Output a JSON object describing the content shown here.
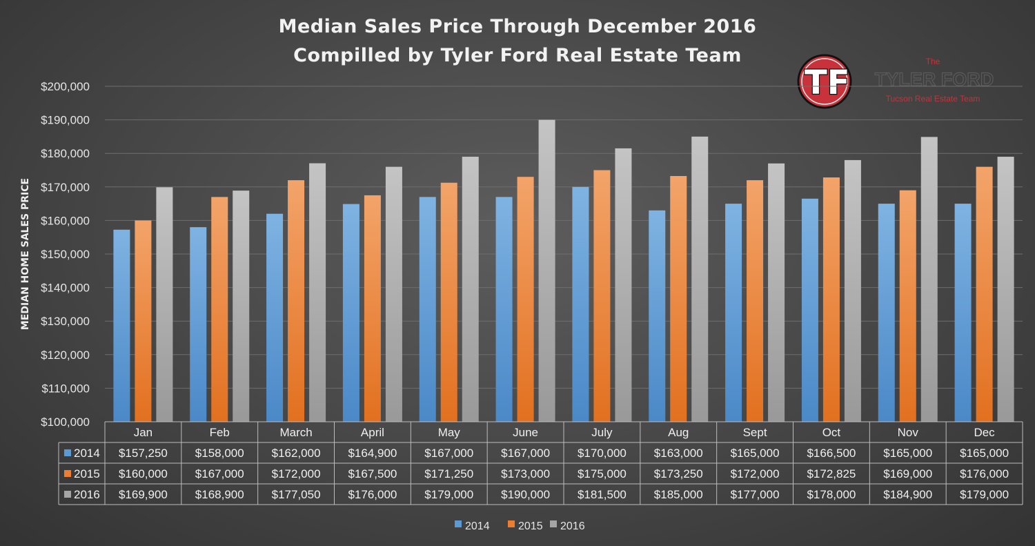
{
  "colors": {
    "s2014": "#5b9bd5",
    "s2015": "#ed7d31",
    "s2016": "#a5a5a5",
    "grid": "#6e6e6e",
    "logo_red": "#c8323a"
  },
  "logo": {
    "monogram": "TF",
    "the": "The",
    "name": "TYLER FORD",
    "subtitle": "Tucson Real Estate Team"
  },
  "chart_data": {
    "type": "bar",
    "title": "Median Sales Price Through December 2016",
    "subtitle": "Compilled by Tyler Ford Real Estate Team",
    "xlabel": "",
    "ylabel": "MEDIAN HOME SALES PRICE",
    "ylim": [
      100000,
      200000
    ],
    "yticks": [
      "$100,000",
      "$110,000",
      "$120,000",
      "$130,000",
      "$140,000",
      "$150,000",
      "$160,000",
      "$170,000",
      "$180,000",
      "$190,000",
      "$200,000"
    ],
    "grid": true,
    "legend": "bottom",
    "categories": [
      "Jan",
      "Feb",
      "March",
      "April",
      "May",
      "June",
      "July",
      "Aug",
      "Sept",
      "Oct",
      "Nov",
      "Dec"
    ],
    "series": [
      {
        "name": "2014",
        "values": [
          157250,
          158000,
          162000,
          164900,
          167000,
          167000,
          170000,
          163000,
          165000,
          166500,
          165000,
          165000
        ],
        "labels": [
          "$157,250",
          "$158,000",
          "$162,000",
          "$164,900",
          "$167,000",
          "$167,000",
          "$170,000",
          "$163,000",
          "$165,000",
          "$166,500",
          "$165,000",
          "$165,000"
        ]
      },
      {
        "name": "2015",
        "values": [
          160000,
          167000,
          172000,
          167500,
          171250,
          173000,
          175000,
          173250,
          172000,
          172825,
          169000,
          176000
        ],
        "labels": [
          "$160,000",
          "$167,000",
          "$172,000",
          "$167,500",
          "$171,250",
          "$173,000",
          "$175,000",
          "$173,250",
          "$172,000",
          "$172,825",
          "$169,000",
          "$176,000"
        ]
      },
      {
        "name": "2016",
        "values": [
          169900,
          168900,
          177050,
          176000,
          179000,
          190000,
          181500,
          185000,
          177000,
          178000,
          184900,
          179000
        ],
        "labels": [
          "$169,900",
          "$168,900",
          "$177,050",
          "$176,000",
          "$179,000",
          "$190,000",
          "$181,500",
          "$185,000",
          "$177,000",
          "$178,000",
          "$184,900",
          "$179,000"
        ]
      }
    ]
  }
}
